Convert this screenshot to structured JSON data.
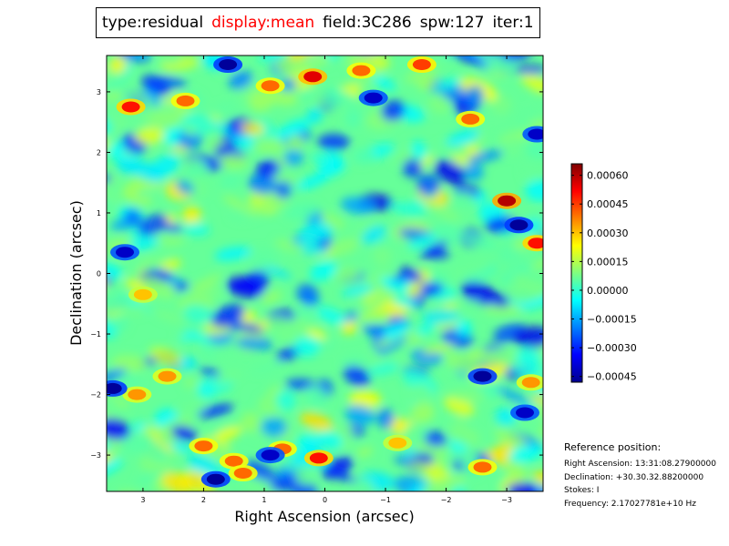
{
  "header": {
    "type": "type:residual",
    "display": "display:mean",
    "field": "field:3C286",
    "spw": "spw:127",
    "iter": "iter:1"
  },
  "colors": {
    "highlight": "#ff0000",
    "axis": "#000000"
  },
  "chart_data": {
    "type": "heatmap",
    "title": "type:residual display:mean field:3C286 spw:127 iter:1",
    "xlabel": "Right Ascension (arcsec)",
    "ylabel": "Declination (arcsec)",
    "x_ticks": [
      3,
      2,
      1,
      0,
      -1,
      -2,
      -3
    ],
    "x_tick_labels": [
      "3",
      "2",
      "1",
      "0",
      "−1",
      "−2",
      "−3"
    ],
    "y_ticks": [
      3,
      2,
      1,
      0,
      -1,
      -2,
      -3
    ],
    "y_tick_labels": [
      "3",
      "2",
      "1",
      "0",
      "−1",
      "−2",
      "−3"
    ],
    "xlim": [
      3.6,
      -3.6
    ],
    "ylim": [
      -3.6,
      3.6
    ],
    "colormap": "jet",
    "colorbar": {
      "vmin": -0.00048,
      "vmax": 0.00066,
      "ticks": [
        0.0006,
        0.00045,
        0.0003,
        0.00015,
        0.0,
        -0.00015,
        -0.0003,
        -0.00045
      ],
      "tick_labels": [
        "0.00060",
        "0.00045",
        "0.00030",
        "0.00015",
        "0.00000",
        "−0.00015",
        "−0.00030",
        "−0.00045"
      ]
    },
    "features": [
      {
        "x": 0.2,
        "y": 3.25,
        "value": 0.00055
      },
      {
        "x": 3.2,
        "y": 2.75,
        "value": 0.0005
      },
      {
        "x": 2.3,
        "y": 2.85,
        "value": 0.0004
      },
      {
        "x": 0.9,
        "y": 3.1,
        "value": 0.0004
      },
      {
        "x": -0.6,
        "y": 3.35,
        "value": 0.0004
      },
      {
        "x": -1.6,
        "y": 3.45,
        "value": 0.00045
      },
      {
        "x": -2.4,
        "y": 2.55,
        "value": 0.0004
      },
      {
        "x": -3.0,
        "y": 1.2,
        "value": 0.0006
      },
      {
        "x": -3.5,
        "y": 0.5,
        "value": 0.0005
      },
      {
        "x": 3.0,
        "y": -0.35,
        "value": 0.0003
      },
      {
        "x": 2.6,
        "y": -1.7,
        "value": 0.00035
      },
      {
        "x": 3.1,
        "y": -2.0,
        "value": 0.00035
      },
      {
        "x": 2.0,
        "y": -2.85,
        "value": 0.0004
      },
      {
        "x": 1.5,
        "y": -3.1,
        "value": 0.0004
      },
      {
        "x": 0.7,
        "y": -2.9,
        "value": 0.0004
      },
      {
        "x": 0.1,
        "y": -3.05,
        "value": 0.0005
      },
      {
        "x": 1.35,
        "y": -3.3,
        "value": 0.0004
      },
      {
        "x": -1.2,
        "y": -2.8,
        "value": 0.0003
      },
      {
        "x": -2.6,
        "y": -3.2,
        "value": 0.0004
      },
      {
        "x": -3.4,
        "y": -1.8,
        "value": 0.00035
      },
      {
        "x": 1.6,
        "y": 3.45,
        "value": -0.00045
      },
      {
        "x": 3.3,
        "y": 0.35,
        "value": -0.0004
      },
      {
        "x": 3.5,
        "y": -1.9,
        "value": -0.00045
      },
      {
        "x": 1.8,
        "y": -3.4,
        "value": -0.00045
      },
      {
        "x": 0.9,
        "y": -3.0,
        "value": -0.0004
      },
      {
        "x": -2.6,
        "y": -1.7,
        "value": -0.00045
      },
      {
        "x": -3.3,
        "y": -2.3,
        "value": -0.0004
      },
      {
        "x": -3.2,
        "y": 0.8,
        "value": -0.00045
      },
      {
        "x": -3.5,
        "y": 2.3,
        "value": -0.0004
      },
      {
        "x": -0.8,
        "y": 2.9,
        "value": -0.0004
      }
    ]
  },
  "reference": {
    "heading": "Reference position:",
    "ra": "Right Ascension: 13:31:08.27900000",
    "dec": "Declination: +30.30.32.88200000",
    "stokes": "Stokes: I",
    "frequency": "Frequency: 2.17027781e+10 Hz"
  }
}
